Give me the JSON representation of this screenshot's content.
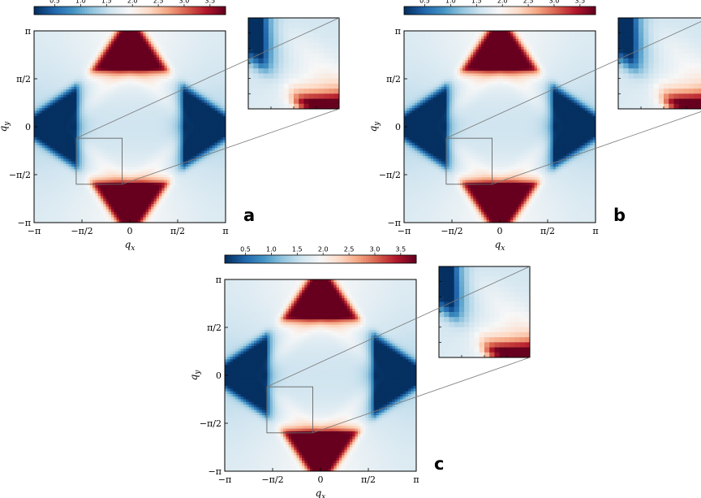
{
  "chart_data": {
    "type": "heatmap",
    "colormap": [
      "#053061",
      "#2166ac",
      "#4393c3",
      "#92c5de",
      "#d1e5f0",
      "#f7f7f7",
      "#fddbc7",
      "#f4a582",
      "#d6604d",
      "#b2182b",
      "#67001f"
    ],
    "colorbar": {
      "range": [
        0.1,
        3.8
      ],
      "ticks": [
        "0.5",
        "1.0",
        "1.5",
        "2.0",
        "2.5",
        "3.0",
        "3.5"
      ],
      "position": "top"
    },
    "xlabel": "q_x",
    "ylabel": "q_y",
    "x_ticks": [
      "−π",
      "−π/2",
      "0",
      "π/2",
      "π"
    ],
    "y_ticks": [
      "π",
      "π/2",
      "0",
      "−π/2",
      "−π"
    ],
    "xlim": [
      "−π",
      "π"
    ],
    "ylim": [
      "−π",
      "π"
    ],
    "inset_region": {
      "x": [
        "−1.6π/π",
        "−0.35"
      ],
      "y": [
        "−1.6",
        "−0.35"
      ]
    },
    "panels": [
      {
        "label": "a",
        "x_ticks_shown": true
      },
      {
        "label": "b",
        "x_ticks_shown": true
      },
      {
        "label": "c",
        "x_ticks_shown": true
      }
    ]
  }
}
